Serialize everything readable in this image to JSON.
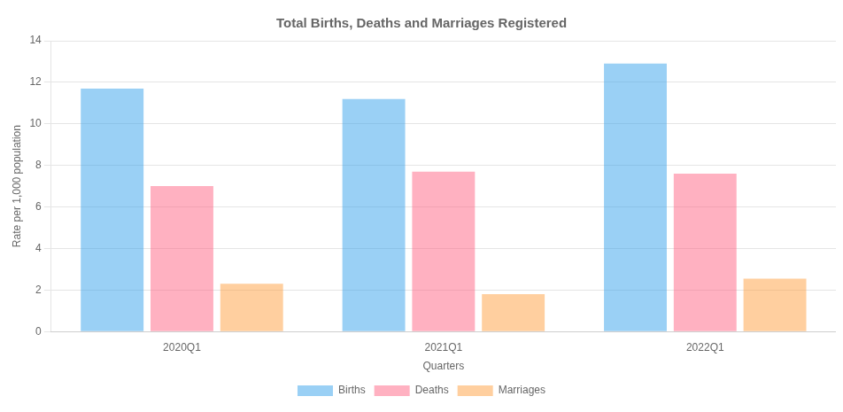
{
  "chart_data": {
    "type": "bar",
    "title": "Total Births, Deaths and Marriages Registered",
    "xlabel": "Quarters",
    "ylabel": "Rate per 1,000 population",
    "categories": [
      "2020Q1",
      "2021Q1",
      "2022Q1"
    ],
    "series": [
      {
        "name": "Births",
        "values": [
          11.7,
          11.2,
          12.9
        ]
      },
      {
        "name": "Deaths",
        "values": [
          7.0,
          7.7,
          7.6
        ]
      },
      {
        "name": "Marriages",
        "values": [
          2.3,
          1.8,
          2.55
        ]
      }
    ],
    "ylim": [
      0,
      14
    ],
    "yticks": [
      0,
      2,
      4,
      6,
      8,
      10,
      12,
      14
    ],
    "grid": true,
    "legend": "bottom"
  }
}
